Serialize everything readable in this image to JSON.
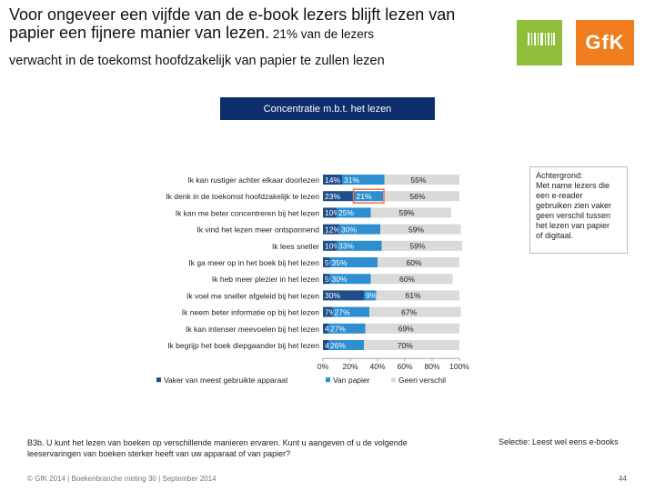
{
  "header": {
    "title_main": "Voor ongeveer een vijfde van de e-book lezers blijft lezen van papier een fijnere manier van lezen.",
    "title_suffix": " 21% van de lezers",
    "subtitle": "verwacht in de toekomst hoofdzakelijk van papier te zullen lezen",
    "logo_text": "GfK",
    "colors": {
      "logo_green": "#8fbf3a",
      "logo_orange": "#f07d1f",
      "header_navy": "#0d2d6d"
    }
  },
  "section_title": "Concentratie m.b.t. het lezen",
  "chart_data": {
    "type": "bar",
    "orientation": "horizontal-stacked-100",
    "categories": [
      "Ik kan rustiger achter elkaar doorlezen",
      "Ik denk in de toekomst hoofdzakelijk te lezen",
      "Ik kan me beter concentreren bij het lezen",
      "Ik vind het lezen meer ontspannend",
      "Ik lees sneller",
      "Ik ga meer op in het boek bij het lezen",
      "Ik heb meer plezier in het lezen",
      "Ik voel me sneller afgeleid bij het lezen",
      "Ik neem beter informatie op bij het lezen",
      "Ik kan intenser meevoelen bij het lezen",
      "Ik begrijp het boek diepgaander bij het lezen"
    ],
    "series": [
      {
        "name": "Vaker van meest gebruikte apparaat",
        "color": "#1f4e8c",
        "values": [
          14,
          23,
          10,
          12,
          10,
          5,
          5,
          30,
          7,
          4,
          4
        ],
        "labels": [
          "14%",
          "23%",
          "10%",
          "12%",
          "10%",
          "5%",
          "5%",
          "30%",
          "7%",
          "4%",
          "4%"
        ]
      },
      {
        "name": "Van papier",
        "color": "#2e8fd0",
        "values": [
          31,
          21,
          25,
          30,
          33,
          35,
          30,
          9,
          27,
          27,
          26
        ],
        "labels": [
          "31%",
          "21%",
          "25%",
          "30%",
          "33%",
          "35%",
          "30%",
          "9%",
          "27%",
          "27%",
          "26%"
        ]
      },
      {
        "name": "Geen verschil",
        "color": "#dadada",
        "values": [
          55,
          56,
          59,
          59,
          59,
          60,
          60,
          61,
          67,
          69,
          70
        ],
        "labels": [
          "55%",
          "56%",
          "59%",
          "59%",
          "59%",
          "60%",
          "60%",
          "61%",
          "67%",
          "69%",
          "70%"
        ]
      }
    ],
    "highlight": {
      "category_index": 1,
      "series_index": 1,
      "color": "#e8734a"
    },
    "x_ticks": [
      "0%",
      "20%",
      "40%",
      "60%",
      "80%",
      "100%"
    ],
    "xlim": [
      0,
      100
    ],
    "legend": [
      "Vaker van meest gebruikte apparaat",
      "Van papier",
      "Geen verschil"
    ],
    "legend_position": "bottom"
  },
  "note": {
    "lines": [
      "Achtergrond:",
      "Met name lezers die",
      "een e-reader",
      "gebruiken zien vaker",
      "geen verschil tussen",
      "het lezen van papier",
      "of digitaal."
    ]
  },
  "footnote": "B3b. U kunt het lezen van boeken op verschillende manieren ervaren. Kunt u aangeven of u de volgende leeservaringen van boeken sterker heeft van uw apparaat of van papier?",
  "selectie": "Selectie: Leest wel eens e-books",
  "footer": {
    "left": "© GfK 2014 | Boekenbranche meting 30 | September 2014",
    "page": "44"
  }
}
